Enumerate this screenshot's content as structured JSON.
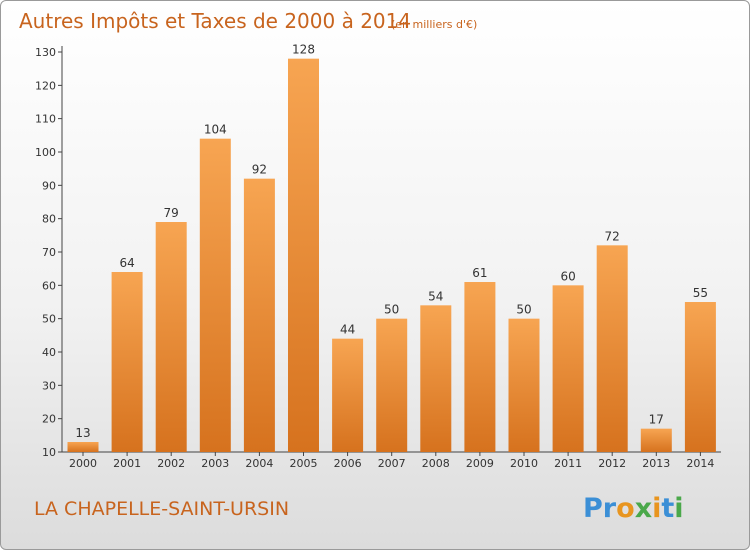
{
  "title": "Autres Impôts et Taxes de 2000 à 2014",
  "unit": "(en milliers d'€)",
  "location": "LA CHAPELLE-SAINT-URSIN",
  "logo": {
    "text": "Proxiti",
    "letters": [
      "P",
      "r",
      "o",
      "x",
      "i",
      "t",
      "i"
    ],
    "colors": [
      "#3b8fd6",
      "#3b8fd6",
      "#e8951f",
      "#4aa84a",
      "#e8951f",
      "#3b8fd6",
      "#4aa84a"
    ]
  },
  "colors": {
    "bar_top": "#f7a552",
    "bar_bottom": "#d6721e",
    "accent": "#c8641e"
  },
  "chart_data": {
    "type": "bar",
    "title": "Autres Impôts et Taxes de 2000 à 2014",
    "subtitle": "(en milliers d'€)",
    "xlabel": "",
    "ylabel": "",
    "categories": [
      "2000",
      "2001",
      "2002",
      "2003",
      "2004",
      "2005",
      "2006",
      "2007",
      "2008",
      "2009",
      "2010",
      "2011",
      "2012",
      "2013",
      "2014"
    ],
    "values": [
      13,
      64,
      79,
      104,
      92,
      128,
      44,
      50,
      54,
      61,
      50,
      60,
      72,
      17,
      55
    ],
    "ylim": [
      10,
      130
    ],
    "yticks": [
      10,
      20,
      30,
      40,
      50,
      60,
      70,
      80,
      90,
      100,
      110,
      120,
      130
    ],
    "grid": false,
    "legend": "none"
  }
}
